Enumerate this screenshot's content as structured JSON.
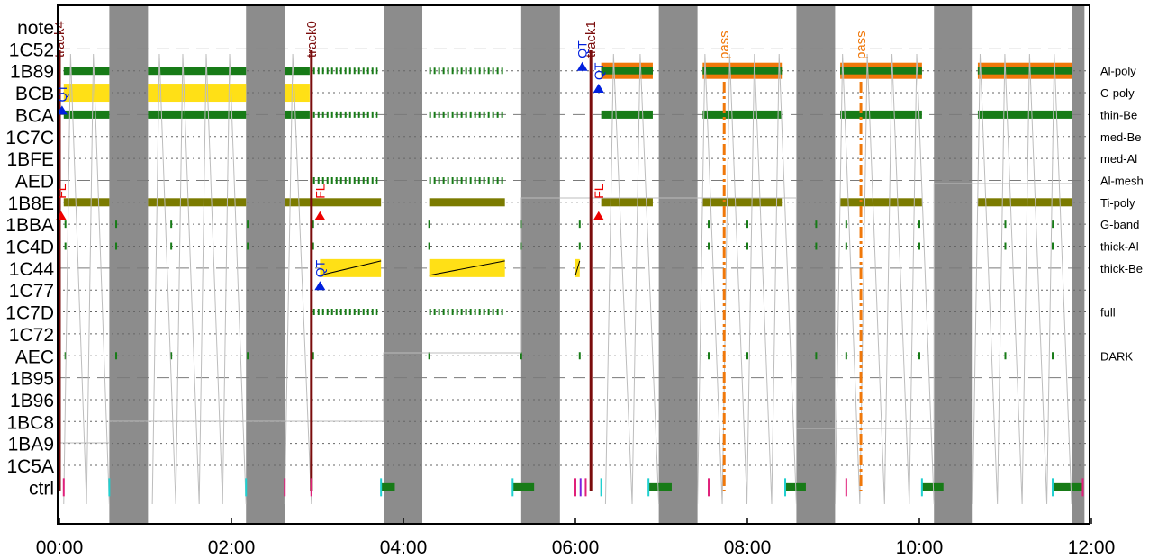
{
  "chart_data": {
    "type": "timeline",
    "x_ticks": [
      "00:00",
      "02:00",
      "04:00",
      "06:00",
      "08:00",
      "10:00",
      "12:00"
    ],
    "xlim": [
      -0.05,
      12.15
    ],
    "y_rows": [
      "note",
      "1C52",
      "1B89",
      "BCB",
      "BCA",
      "1C7C",
      "1BFE",
      "AED",
      "1B8E",
      "1BBA",
      "1C4D",
      "1C44",
      "1C77",
      "1C7D",
      "1C72",
      "AEC",
      "1B95",
      "1B96",
      "1BC8",
      "1BA9",
      "1C5A",
      "ctrl"
    ],
    "right_labels": [
      {
        "row": "1B89",
        "text": "Al-poly"
      },
      {
        "row": "BCB",
        "text": "C-poly"
      },
      {
        "row": "BCA",
        "text": "thin-Be"
      },
      {
        "row": "1C7C",
        "text": "med-Be"
      },
      {
        "row": "1BFE",
        "text": "med-Al"
      },
      {
        "row": "AED",
        "text": "Al-mesh"
      },
      {
        "row": "1B8E",
        "text": "Ti-poly"
      },
      {
        "row": "1BBA",
        "text": "G-band"
      },
      {
        "row": "1C4D",
        "text": "thick-Al"
      },
      {
        "row": "1C44",
        "text": "thick-Be"
      },
      {
        "row": "1C7D",
        "text": "full"
      },
      {
        "row": "AEC",
        "text": "DARK"
      }
    ],
    "gray_bands": [
      [
        0.58,
        1.03
      ],
      [
        2.17,
        2.62
      ],
      [
        3.77,
        4.22
      ],
      [
        5.37,
        5.82
      ],
      [
        6.97,
        7.42
      ],
      [
        8.57,
        9.02
      ],
      [
        10.17,
        10.62
      ],
      [
        11.77,
        11.92
      ]
    ],
    "tracks": [
      {
        "label": "track4",
        "x": 0.0
      },
      {
        "label": "track0",
        "x": 2.93
      },
      {
        "label": "track1",
        "x": 6.18
      }
    ],
    "pass_lines": [
      {
        "label": "pass",
        "x": 7.73
      },
      {
        "label": "pass",
        "x": 9.32
      }
    ],
    "fl_markers": [
      {
        "label": "FL",
        "x": 0.02
      },
      {
        "label": "FL",
        "x": 3.03
      },
      {
        "label": "FL",
        "x": 6.27
      }
    ],
    "qt_markers": [
      {
        "label": "QT",
        "x": 0.03,
        "row": "BCA"
      },
      {
        "label": "QT",
        "x": 3.03,
        "row": "1C77"
      },
      {
        "label": "QT",
        "x": 6.08,
        "row": "1B89"
      },
      {
        "label": "QT",
        "x": 6.27,
        "row": "BCB"
      }
    ],
    "solid_segments": [
      {
        "row": "1B89",
        "color": "#177b17",
        "ranges": [
          [
            0.05,
            0.58
          ],
          [
            1.03,
            2.17
          ],
          [
            2.62,
            2.91
          ],
          [
            6.3,
            6.9
          ],
          [
            7.48,
            8.4
          ],
          [
            9.08,
            10.03
          ],
          [
            10.68,
            11.77
          ]
        ]
      },
      {
        "row": "1B89",
        "color": "#f0780a",
        "ranges": [
          [
            6.3,
            6.9
          ],
          [
            7.48,
            8.4
          ],
          [
            9.08,
            10.03
          ],
          [
            10.68,
            11.77
          ]
        ]
      },
      {
        "row": "BCB",
        "color": "#ffe016",
        "ranges": [
          [
            0.05,
            0.58
          ],
          [
            1.03,
            2.17
          ],
          [
            2.62,
            2.91
          ]
        ]
      },
      {
        "row": "BCA",
        "color": "#177b17",
        "ranges": [
          [
            0.05,
            0.58
          ],
          [
            1.03,
            2.17
          ],
          [
            2.62,
            2.91
          ],
          [
            6.3,
            6.9
          ],
          [
            7.48,
            8.4
          ],
          [
            9.08,
            10.03
          ],
          [
            10.68,
            11.77
          ]
        ]
      },
      {
        "row": "1B8E",
        "color": "#7b7b00",
        "ranges": [
          [
            0.05,
            0.58
          ],
          [
            1.03,
            2.17
          ],
          [
            2.62,
            3.74
          ],
          [
            4.3,
            5.18
          ],
          [
            6.3,
            6.9
          ],
          [
            7.48,
            8.4
          ],
          [
            9.08,
            10.03
          ],
          [
            10.68,
            11.77
          ]
        ]
      },
      {
        "row": "1C44",
        "color": "#ffe016",
        "ranges": [
          [
            3.03,
            3.74
          ],
          [
            4.3,
            5.18
          ],
          [
            6.0,
            6.05
          ]
        ]
      },
      {
        "row": "ctrl",
        "color": "#177b17",
        "ranges": [
          [
            3.74,
            3.9
          ],
          [
            5.27,
            5.52
          ],
          [
            6.85,
            7.12
          ],
          [
            8.44,
            8.68
          ],
          [
            10.03,
            10.28
          ],
          [
            11.57,
            11.9
          ]
        ]
      }
    ],
    "dashed_segments": [
      {
        "row": "1B89",
        "color": "#177b17",
        "ranges": [
          [
            2.95,
            3.7
          ],
          [
            4.3,
            5.18
          ]
        ]
      },
      {
        "row": "BCA",
        "color": "#177b17",
        "ranges": [
          [
            2.95,
            3.7
          ],
          [
            4.3,
            5.18
          ]
        ]
      },
      {
        "row": "AED",
        "color": "#177b17",
        "ranges": [
          [
            2.95,
            3.7
          ],
          [
            4.3,
            5.18
          ]
        ]
      },
      {
        "row": "1C7D",
        "color": "#177b17",
        "ranges": [
          [
            2.95,
            3.7
          ],
          [
            4.3,
            5.18
          ]
        ]
      }
    ],
    "tick_rows": [
      "1BBA",
      "1C4D",
      "AEC"
    ],
    "gray_staircase": [
      [
        0.0,
        0.0
      ],
      [
        0.58,
        0.0
      ],
      [
        0.58,
        0.06
      ],
      [
        2.17,
        0.06
      ],
      [
        2.17,
        0.06
      ],
      [
        3.77,
        0.06
      ],
      [
        3.77,
        0.25
      ],
      [
        5.37,
        0.25
      ],
      [
        5.37,
        0.68
      ],
      [
        6.97,
        0.68
      ],
      [
        8.57,
        0.68
      ],
      [
        8.57,
        0.04
      ],
      [
        10.17,
        0.04
      ],
      [
        10.17,
        0.72
      ],
      [
        11.77,
        0.72
      ]
    ]
  }
}
